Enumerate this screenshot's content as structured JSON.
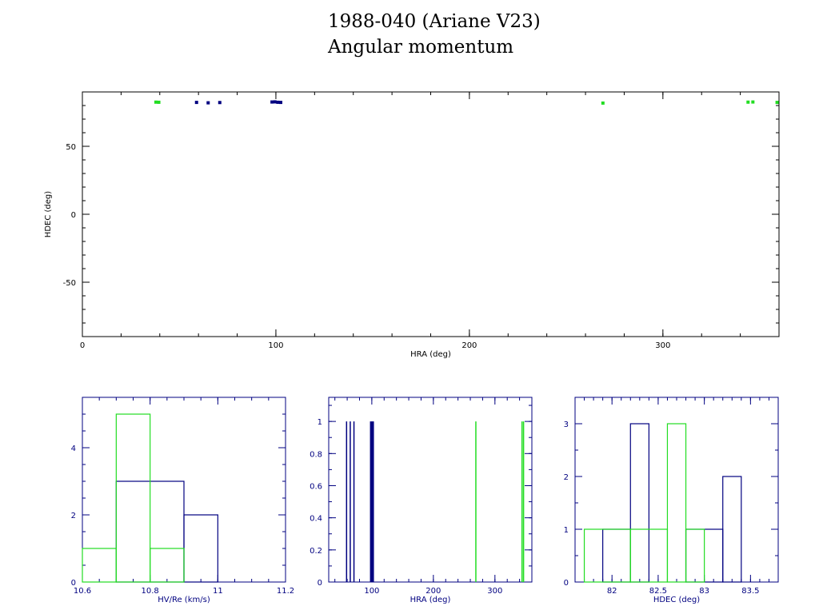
{
  "title": "1988-040 (Ariane V23)",
  "subtitle": "Angular momentum",
  "colors": {
    "blue": "#000080",
    "green": "#22dd22",
    "axes_main": "#000000",
    "axes_hist": "#000080"
  },
  "chart_data": [
    {
      "type": "scatter",
      "xlabel": "HRA (deg)",
      "ylabel": "HDEC (deg)",
      "xlim": [
        0,
        360
      ],
      "ylim": [
        -90,
        90
      ],
      "xticks": [
        "0",
        "100",
        "200",
        "300"
      ],
      "yticks": [
        "-50",
        "0",
        "50"
      ],
      "series": [
        {
          "color": "#000080",
          "points": [
            [
              59,
              82.3
            ],
            [
              65,
              82.0
            ],
            [
              71,
              82.2
            ],
            [
              98,
              82.6
            ],
            [
              99.5,
              82.7
            ],
            [
              101,
              82.4
            ],
            [
              102.5,
              82.3
            ]
          ]
        },
        {
          "color": "#22dd22",
          "points": [
            [
              38,
              82.5
            ],
            [
              39.5,
              82.4
            ],
            [
              269,
              81.8
            ],
            [
              344,
              82.5
            ],
            [
              346.5,
              82.6
            ],
            [
              359,
              82.3
            ]
          ]
        }
      ]
    },
    {
      "type": "histogram",
      "xlabel": "HV/Re (km/s)",
      "xlim": [
        10.6,
        11.2
      ],
      "ylim": [
        0,
        5.5
      ],
      "xticks": [
        "10.6",
        "10.8",
        "11",
        "11.2"
      ],
      "yticks": [
        "0",
        "2",
        "4"
      ],
      "series": [
        {
          "color": "#000080",
          "bins": [
            [
              10.7,
              10.9,
              3
            ],
            [
              10.9,
              11.0,
              2
            ]
          ]
        },
        {
          "color": "#22dd22",
          "bins": [
            [
              10.6,
              10.7,
              1
            ],
            [
              10.7,
              10.8,
              5
            ],
            [
              10.8,
              10.9,
              1
            ]
          ]
        }
      ]
    },
    {
      "type": "histogram",
      "xlabel": "HRA (deg)",
      "xlim": [
        30,
        360
      ],
      "ylim": [
        0,
        1.15
      ],
      "xticks": [
        "100",
        "200",
        "300"
      ],
      "yticks": [
        "0",
        "0.2",
        "0.4",
        "0.6",
        "0.8",
        "1"
      ],
      "series": [
        {
          "color": "#000080",
          "spikes": [
            [
              59,
              1
            ],
            [
              65,
              1
            ],
            [
              71,
              1
            ],
            [
              98,
              1
            ],
            [
              99.5,
              1
            ],
            [
              101,
              1
            ],
            [
              102.5,
              1
            ]
          ]
        },
        {
          "color": "#22dd22",
          "spikes": [
            [
              269,
              1
            ],
            [
              344,
              1
            ],
            [
              346.5,
              1
            ]
          ]
        }
      ]
    },
    {
      "type": "histogram",
      "xlabel": "HDEC (deg)",
      "xlim": [
        81.6,
        83.8
      ],
      "ylim": [
        0,
        3.5
      ],
      "xticks": [
        "82",
        "82.5",
        "83",
        "83.5"
      ],
      "yticks": [
        "0",
        "1",
        "2",
        "3"
      ],
      "series": [
        {
          "color": "#000080",
          "bins": [
            [
              81.9,
              82.2,
              1
            ],
            [
              82.2,
              82.4,
              3
            ],
            [
              82.8,
              83.2,
              1
            ],
            [
              83.2,
              83.4,
              2
            ]
          ]
        },
        {
          "color": "#22dd22",
          "bins": [
            [
              81.7,
              82.2,
              1
            ],
            [
              82.2,
              82.6,
              1
            ],
            [
              82.6,
              82.8,
              3
            ],
            [
              82.8,
              83.0,
              1
            ]
          ]
        }
      ]
    }
  ]
}
